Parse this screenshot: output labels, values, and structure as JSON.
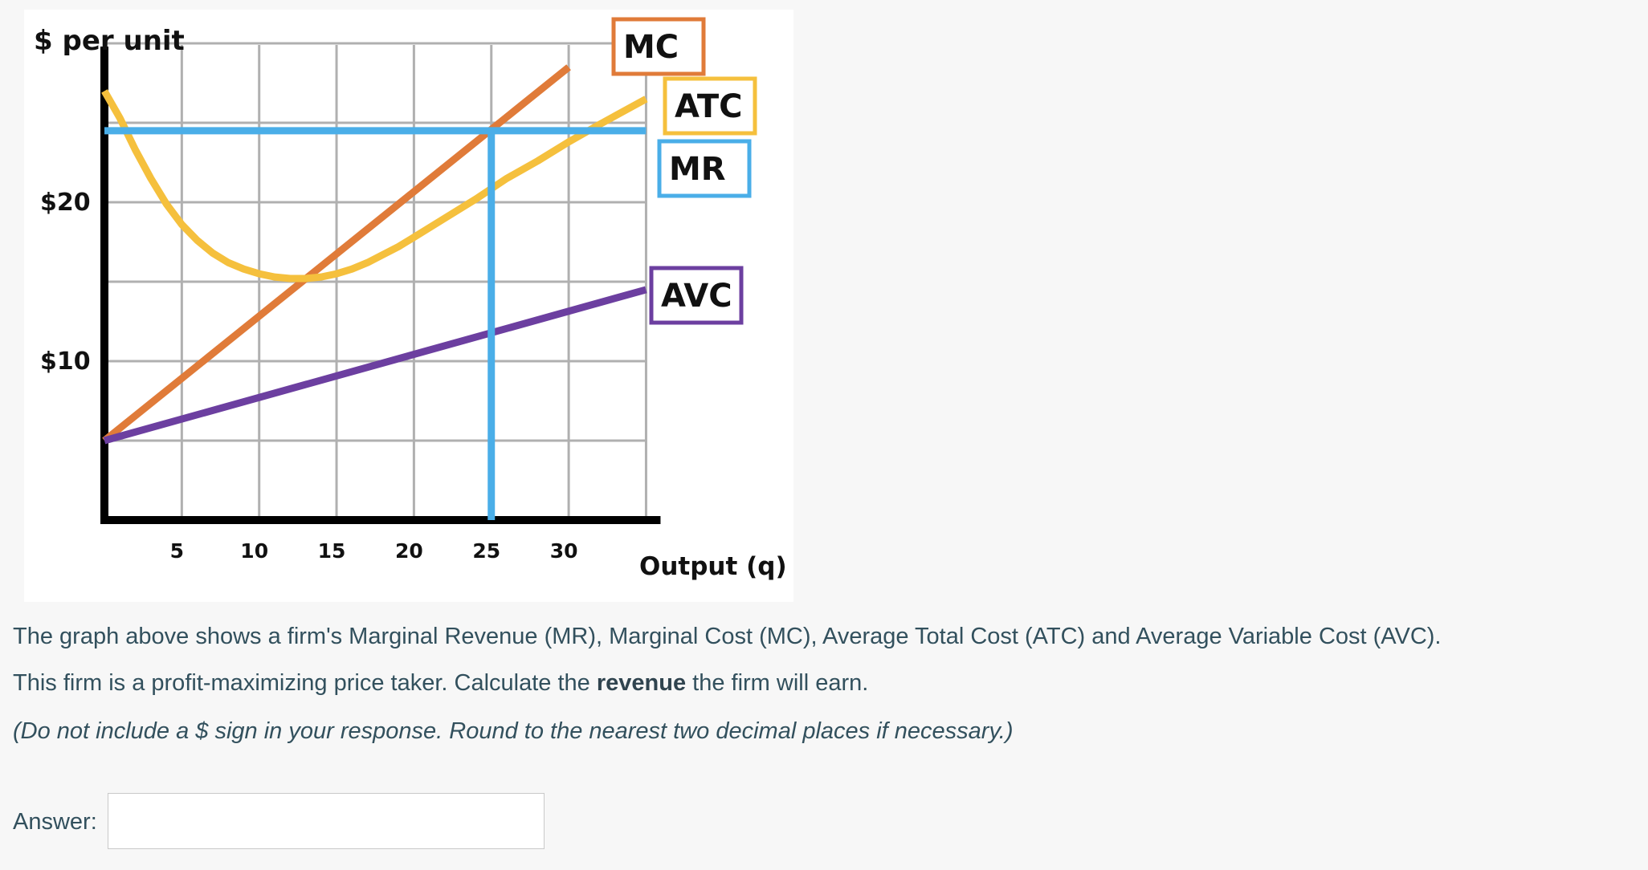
{
  "chart_data": {
    "type": "line",
    "title": "",
    "ylabel": "$ per unit",
    "xlabel": "Output (q)",
    "x_ticks": [
      5,
      10,
      15,
      20,
      25,
      30
    ],
    "y_ticks": [
      {
        "value": 10,
        "label": "$10"
      },
      {
        "value": 20,
        "label": "$20"
      }
    ],
    "xlim": [
      0,
      35
    ],
    "ylim": [
      0,
      30
    ],
    "grid": true,
    "series": [
      {
        "name": "MC",
        "color": "#e07b39",
        "points": [
          [
            0,
            5
          ],
          [
            30,
            28.5
          ]
        ]
      },
      {
        "name": "ATC",
        "color": "#f5c03d",
        "points": [
          [
            0,
            27
          ],
          [
            1,
            25.3
          ],
          [
            2,
            23.3
          ],
          [
            3,
            21.5
          ],
          [
            4,
            19.9
          ],
          [
            5,
            18.6
          ],
          [
            6,
            17.6
          ],
          [
            7,
            16.8
          ],
          [
            8,
            16.2
          ],
          [
            9,
            15.8
          ],
          [
            10,
            15.5
          ],
          [
            11,
            15.3
          ],
          [
            12,
            15.2
          ],
          [
            13,
            15.2
          ],
          [
            14,
            15.3
          ],
          [
            15,
            15.5
          ],
          [
            16,
            15.8
          ],
          [
            17,
            16.2
          ],
          [
            18,
            16.7
          ],
          [
            19,
            17.2
          ],
          [
            20,
            17.8
          ],
          [
            22,
            19.0
          ],
          [
            24,
            20.2
          ],
          [
            26,
            21.5
          ],
          [
            28,
            22.6
          ],
          [
            30,
            23.8
          ],
          [
            32,
            24.9
          ],
          [
            35,
            26.5
          ]
        ]
      },
      {
        "name": "MR",
        "color": "#4aaee8",
        "points": [
          [
            0,
            24.5
          ],
          [
            35,
            24.5
          ]
        ]
      },
      {
        "name": "AVC",
        "color": "#6c3fa0",
        "points": [
          [
            0,
            5
          ],
          [
            35,
            14.5
          ]
        ]
      }
    ],
    "annotations": [
      {
        "type": "vertical_line",
        "x": 25,
        "y_from": 0,
        "y_to": 24.5,
        "color": "#4aaee8"
      }
    ],
    "legend_boxes": [
      {
        "label": "MC",
        "color": "#e07b39"
      },
      {
        "label": "ATC",
        "color": "#f5c03d"
      },
      {
        "label": "MR",
        "color": "#4aaee8"
      },
      {
        "label": "AVC",
        "color": "#6c3fa0"
      }
    ]
  },
  "question": {
    "line1": "The graph above shows a firm's Marginal Revenue (MR), Marginal Cost (MC), Average Total Cost (ATC) and Average Variable Cost (AVC).",
    "line2_pre": "This firm is a profit-maximizing price taker. Calculate the ",
    "line2_bold": "revenue",
    "line2_post": " the firm will earn.",
    "note": "(Do not include a $ sign in your response. Round to the nearest two decimal places if necessary.)"
  },
  "answer": {
    "label": "Answer:",
    "value": "",
    "placeholder": ""
  }
}
